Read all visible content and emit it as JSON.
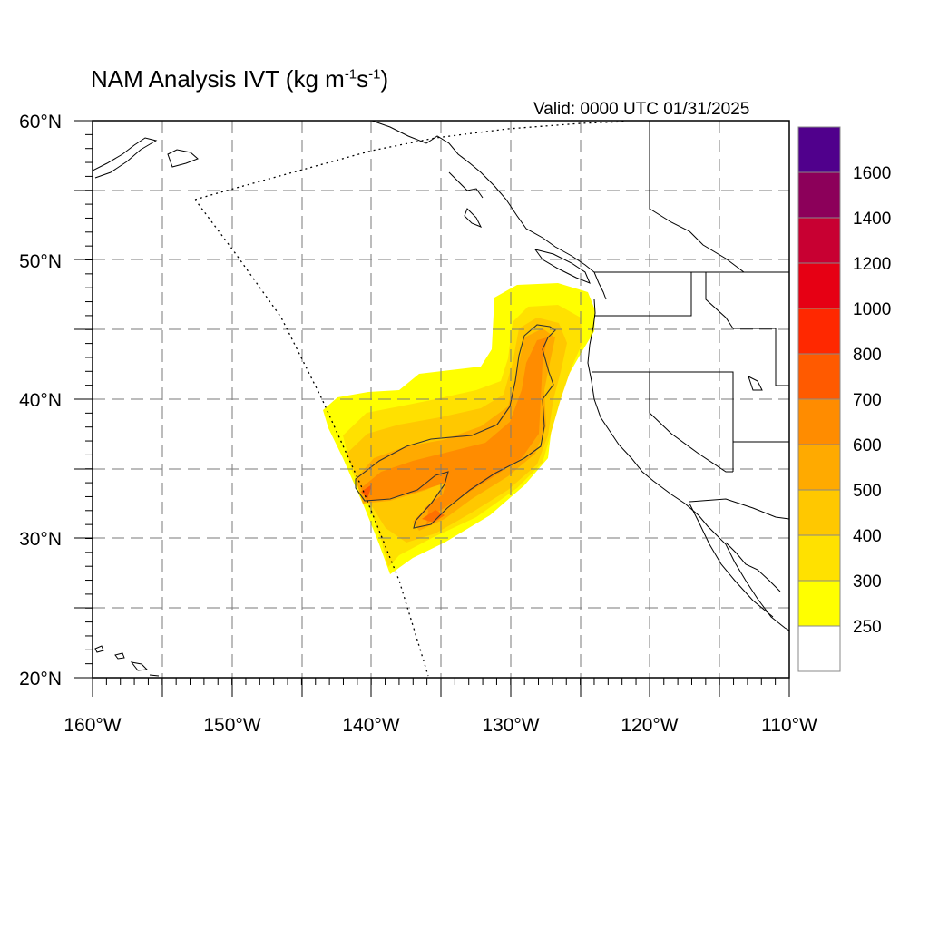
{
  "title": {
    "main": "NAM Analysis IVT (kg m",
    "sup1": "-1",
    "mid": "s",
    "sup2": "-1",
    "end": ")"
  },
  "valid_label": "Valid: 0000 UTC 01/31/2025",
  "map": {
    "lon_range": [
      -160,
      -110
    ],
    "lat_range": [
      20,
      60
    ],
    "lon_ticks": [
      -160,
      -150,
      -140,
      -130,
      -120,
      -110
    ],
    "lat_ticks": [
      20,
      30,
      40,
      50,
      60
    ],
    "lon_tick_labels": [
      "160°W",
      "150°W",
      "140°W",
      "130°W",
      "120°W",
      "110°W"
    ],
    "lat_tick_labels": [
      "20°N",
      "30°N",
      "40°N",
      "50°N",
      "60°N"
    ],
    "grid_spacing_deg": 5,
    "grid": true
  },
  "colorbar": {
    "labels": [
      "250",
      "300",
      "400",
      "500",
      "600",
      "700",
      "800",
      "1000",
      "1200",
      "1400",
      "1600"
    ],
    "colors": [
      "#ffffff",
      "#ffff00",
      "#ffe100",
      "#ffc800",
      "#ffaa00",
      "#ff8c00",
      "#ff5a00",
      "#ff2800",
      "#e60014",
      "#c80032",
      "#8c005a",
      "#50008c"
    ]
  },
  "colors": {
    "ivt_300": "#ffff00",
    "ivt_400": "#ffe100",
    "ivt_500": "#ffc800",
    "ivt_600": "#ffaa00",
    "ivt_700": "#ff8c00"
  }
}
